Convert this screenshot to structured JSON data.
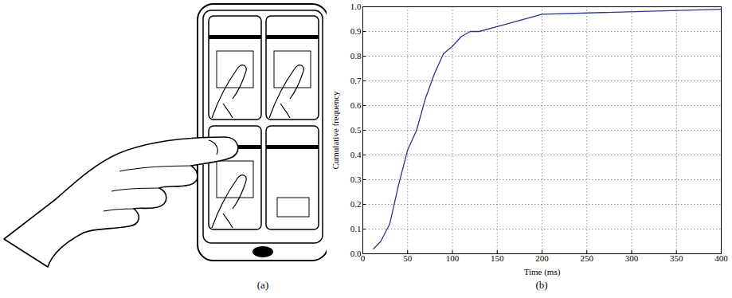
{
  "figure_a": {
    "label": "(a)"
  },
  "chart_data": {
    "type": "line",
    "caption": "(b)",
    "x_label": "Time (ms)",
    "y_label": "Cumulative frequency",
    "x": [
      12,
      20,
      30,
      40,
      50,
      60,
      70,
      80,
      90,
      100,
      110,
      120,
      130,
      150,
      200,
      400
    ],
    "series": [
      {
        "name": "Cumulative frequency",
        "color": "#2b3590",
        "values": [
          0.02,
          0.05,
          0.12,
          0.28,
          0.42,
          0.5,
          0.63,
          0.73,
          0.81,
          0.84,
          0.88,
          0.9,
          0.9,
          0.92,
          0.97,
          0.99
        ]
      }
    ],
    "xlim": [
      0,
      400
    ],
    "xticks": [
      0,
      50,
      100,
      150,
      200,
      250,
      300,
      350,
      400
    ],
    "ylim": [
      0,
      1
    ],
    "yticks": [
      0,
      0.1,
      0.2,
      0.3,
      0.4,
      0.5,
      0.6,
      0.7,
      0.8,
      0.9,
      1
    ],
    "grid": true
  }
}
